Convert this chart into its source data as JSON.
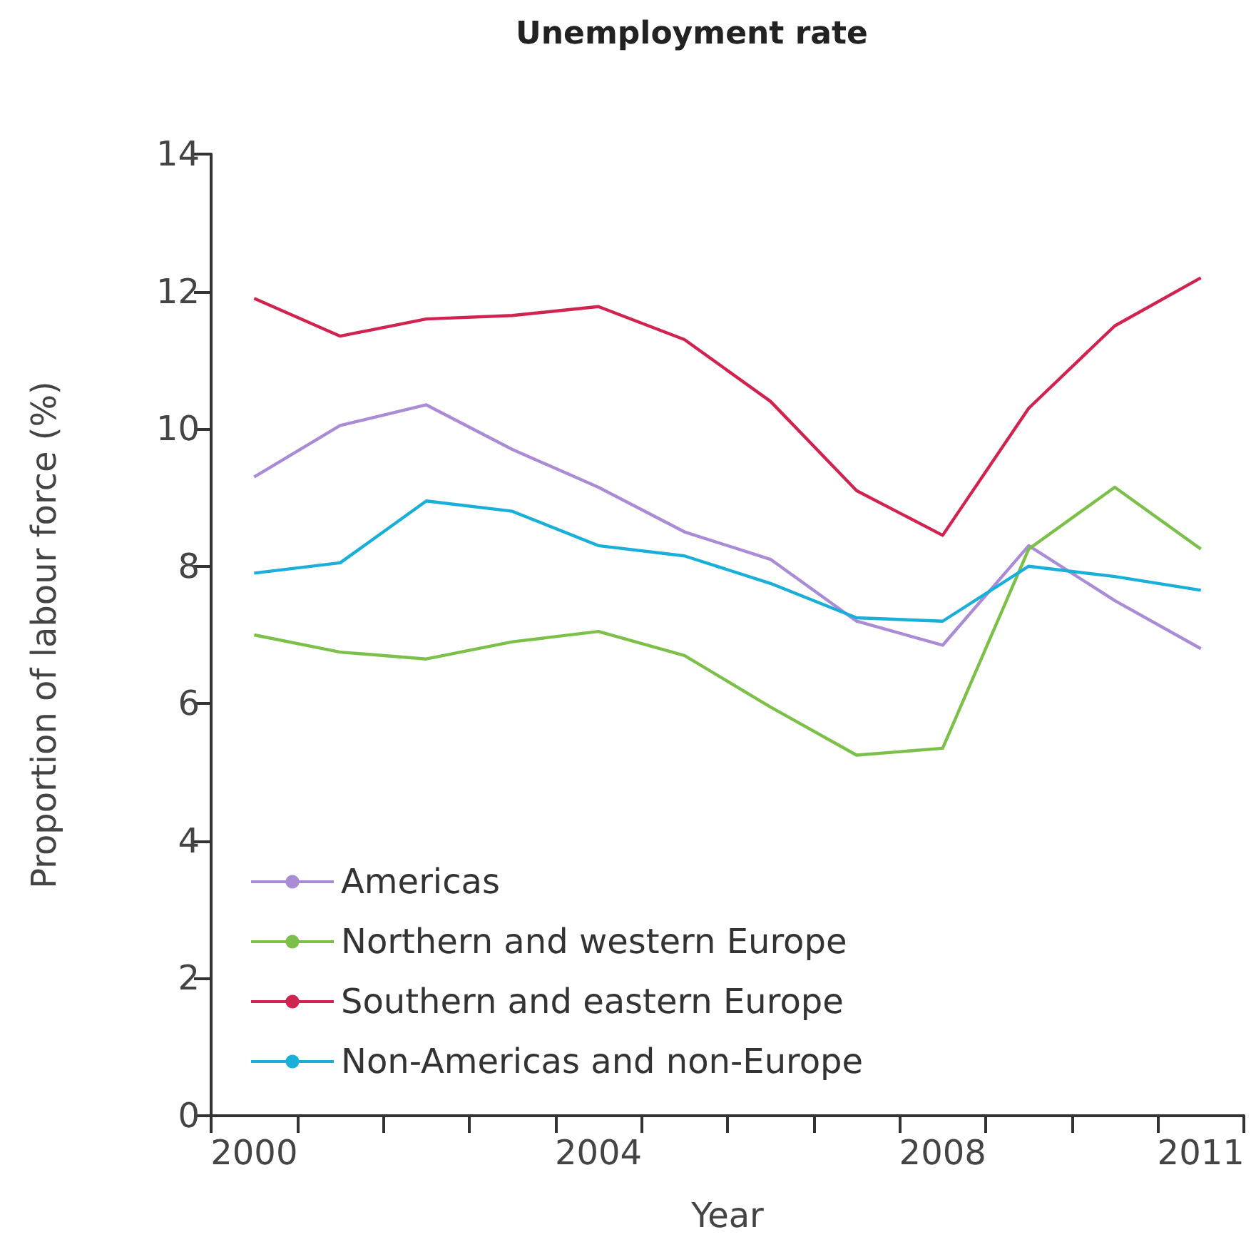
{
  "chart_data": {
    "type": "line",
    "title": "Unemployment rate",
    "xlabel": "Year",
    "ylabel": "Proportion of labour force (%)",
    "categories": [
      "2000",
      null,
      null,
      null,
      "2004",
      null,
      null,
      null,
      "2008",
      null,
      null,
      "2011"
    ],
    "series": [
      {
        "name": "Americas",
        "color": "#a98bd6",
        "values": [
          9.3,
          10.05,
          10.35,
          9.7,
          9.15,
          8.5,
          8.1,
          7.2,
          6.85,
          8.3,
          7.5,
          6.8
        ]
      },
      {
        "name": "Northern and western Europe",
        "color": "#7cc04a",
        "values": [
          7.0,
          6.75,
          6.65,
          6.9,
          7.05,
          6.7,
          5.95,
          5.25,
          5.35,
          8.25,
          9.15,
          8.25
        ]
      },
      {
        "name": "Southern and eastern Europe",
        "color": "#d0234f",
        "values": [
          11.9,
          11.35,
          11.6,
          11.65,
          11.78,
          11.3,
          10.4,
          9.1,
          8.45,
          10.3,
          11.5,
          12.2
        ]
      },
      {
        "name": "Non-Americas and non-Europe",
        "color": "#1aafd8",
        "values": [
          7.9,
          8.05,
          8.95,
          8.8,
          8.3,
          8.15,
          7.75,
          7.25,
          7.2,
          8.0,
          7.85,
          7.65
        ]
      }
    ],
    "ylim": [
      0,
      14
    ],
    "yticks": [
      0,
      2,
      4,
      6,
      8,
      10,
      12,
      14
    ],
    "grid": false,
    "legend": "bottom left",
    "marker": "none",
    "line_style": "solid"
  }
}
